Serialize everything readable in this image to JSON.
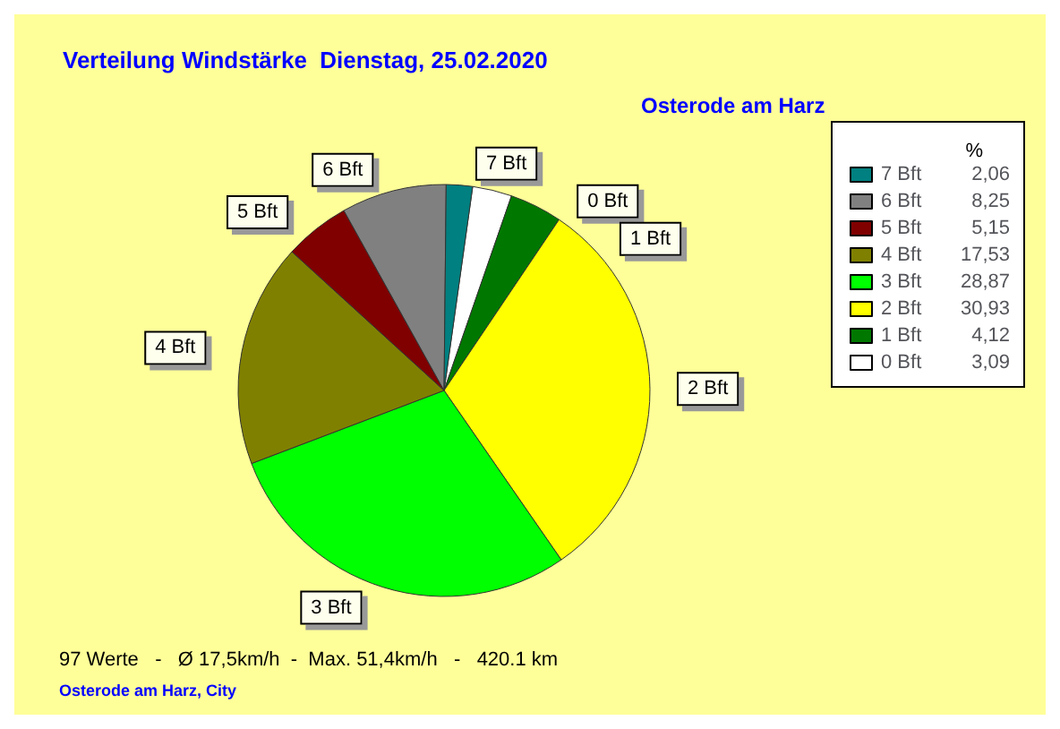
{
  "chart_data": {
    "type": "pie",
    "title": "Verteilung Windstärke  Dienstag, 25.02.2020",
    "subtitle": "Osterode am Harz",
    "legend_title": "%",
    "legend": "top right",
    "categories": [
      "0 Bft",
      "1 Bft",
      "2 Bft",
      "3 Bft",
      "4 Bft",
      "5 Bft",
      "6 Bft",
      "7 Bft"
    ],
    "values": [
      3.09,
      4.12,
      30.93,
      28.87,
      17.53,
      5.15,
      8.25,
      2.06
    ],
    "value_labels": [
      "3,09",
      "4,12",
      "30,93",
      "28,87",
      "17,53",
      "5,15",
      "8,25",
      "2,06"
    ],
    "colors": [
      "#ffffff",
      "#007800",
      "#ffff00",
      "#00ff00",
      "#808000",
      "#800000",
      "#808080",
      "#008080"
    ],
    "annotations": [
      "97 Werte   -   Ø 17,5km/h  -  Max. 51,4km/h   -   420.1 km",
      "Osterode am Harz, City"
    ]
  }
}
